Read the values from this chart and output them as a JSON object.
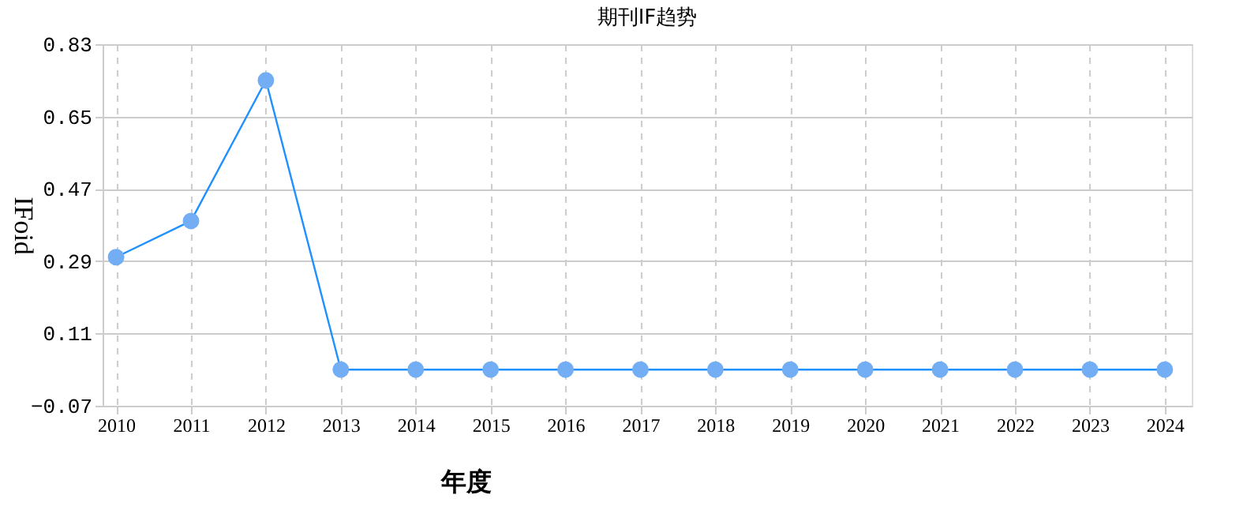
{
  "chart_data": {
    "type": "line",
    "title": "期刊IF趋势",
    "xlabel": "年度",
    "ylabel": "IFoid",
    "categories": [
      "2010",
      "2011",
      "2012",
      "2013",
      "2014",
      "2015",
      "2016",
      "2017",
      "2018",
      "2019",
      "2020",
      "2021",
      "2022",
      "2023",
      "2024"
    ],
    "series": [
      {
        "color": "#1e90ff",
        "values": [
          0.3,
          0.39,
          0.74,
          0.02,
          0.02,
          0.02,
          0.02,
          0.02,
          0.02,
          0.02,
          0.02,
          0.02,
          0.02,
          0.02,
          0.02
        ]
      }
    ],
    "ylim": [
      -0.07,
      0.83
    ],
    "yticks": [
      -0.07,
      0.11,
      0.29,
      0.47,
      0.65,
      0.83
    ],
    "grid": true,
    "marker": "circle",
    "line_style": "solid",
    "legend": false
  }
}
